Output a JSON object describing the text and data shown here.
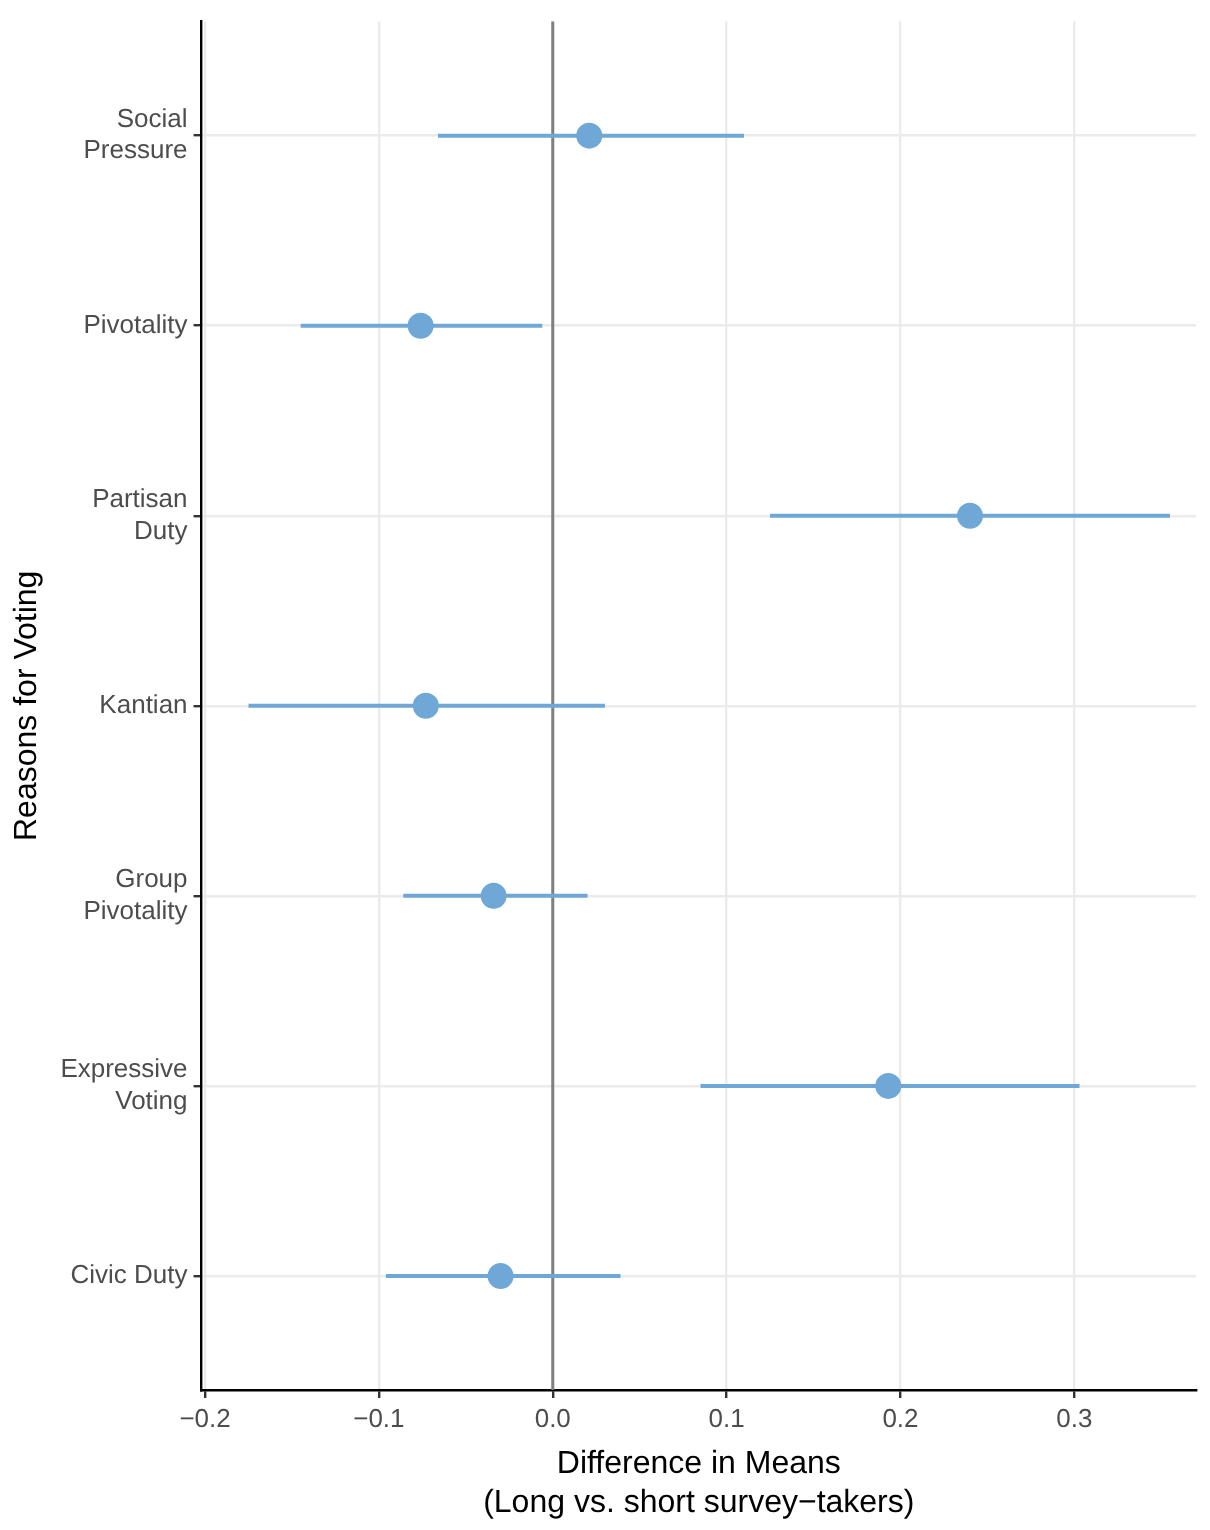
{
  "chart_data": {
    "type": "scatter",
    "orientation": "horizontal",
    "ylabel": "Reasons for Voting",
    "xlabel": "Difference in Means\n(Long vs. short survey−takers)",
    "categories": [
      "Social\nPressure",
      "Pivotality",
      "Partisan\nDuty",
      "Kantian",
      "Group\nPivotality",
      "Expressive\nVoting",
      "Civic Duty"
    ],
    "values": [
      0.021,
      -0.076,
      0.24,
      -0.073,
      -0.034,
      0.193,
      -0.03
    ],
    "errors": [
      [
        -0.066,
        0.11
      ],
      [
        -0.145,
        -0.006
      ],
      [
        0.125,
        0.355
      ],
      [
        -0.175,
        0.03
      ],
      [
        -0.086,
        0.02
      ],
      [
        0.085,
        0.303
      ],
      [
        -0.096,
        0.039
      ]
    ],
    "color": "#6fa8d6",
    "marker": "circle",
    "xlim": [
      -0.202,
      0.37
    ],
    "xticks": [
      {
        "value": -0.2,
        "label": "−0.2"
      },
      {
        "value": -0.1,
        "label": "−0.1"
      },
      {
        "value": 0,
        "label": "0.0"
      },
      {
        "value": 0.1,
        "label": "0.1"
      },
      {
        "value": 0.2,
        "label": "0.2"
      },
      {
        "value": 0.3,
        "label": "0.3"
      }
    ],
    "ref_lines": [
      {
        "axis": "x",
        "value": 0,
        "color": "#808080"
      }
    ],
    "grid": true,
    "legend": false
  }
}
